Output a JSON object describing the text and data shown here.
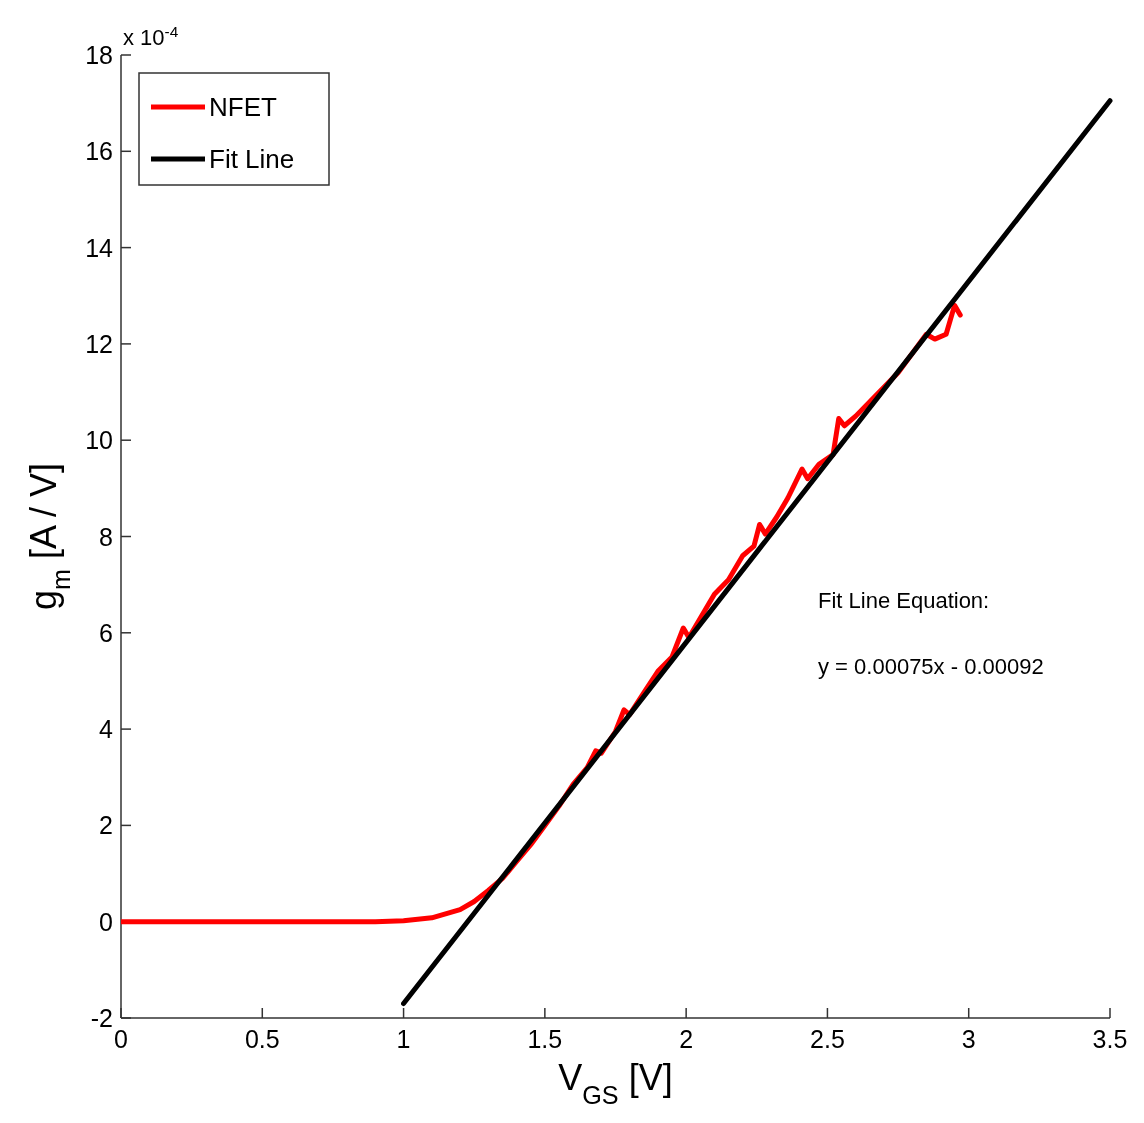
{
  "chart_data": {
    "type": "line",
    "xlabel": "V$_{GS}$ [V]",
    "ylabel": "g$_{m}$ [A / V]",
    "xlim": [
      0,
      3.5
    ],
    "xticks": [
      0,
      0.5,
      1,
      1.5,
      2,
      2.5,
      3,
      3.5
    ],
    "ylim": [
      -2,
      18
    ],
    "yticks": [
      -2,
      0,
      2,
      4,
      6,
      8,
      10,
      12,
      14,
      16,
      18
    ],
    "grid": false,
    "legend": "top left",
    "line_style": "solid",
    "marker": "none",
    "annotations": [
      "x 10$^{-4}$",
      "Fit Line Equation:",
      "y = 0.00075x - 0.00092"
    ],
    "series": [
      {
        "name": "NFET",
        "color": "#ff0000",
        "x": [
          0,
          0.5,
          0.9,
          1.0,
          1.1,
          1.2,
          1.25,
          1.3,
          1.35,
          1.4,
          1.45,
          1.5,
          1.55,
          1.6,
          1.65,
          1.68,
          1.7,
          1.75,
          1.78,
          1.8,
          1.85,
          1.9,
          1.95,
          1.99,
          2.01,
          2.05,
          2.1,
          2.15,
          2.2,
          2.24,
          2.26,
          2.28,
          2.32,
          2.36,
          2.41,
          2.43,
          2.47,
          2.52,
          2.54,
          2.56,
          2.6,
          2.65,
          2.7,
          2.75,
          2.8,
          2.85,
          2.88,
          2.92,
          2.95,
          2.97
        ],
        "values": [
          0,
          0,
          0,
          0.02,
          0.08,
          0.25,
          0.42,
          0.65,
          0.9,
          1.25,
          1.6,
          2.0,
          2.4,
          2.85,
          3.2,
          3.55,
          3.5,
          3.95,
          4.4,
          4.3,
          4.75,
          5.2,
          5.5,
          6.1,
          5.9,
          6.3,
          6.8,
          7.1,
          7.6,
          7.8,
          8.25,
          8.05,
          8.4,
          8.8,
          9.4,
          9.2,
          9.5,
          9.7,
          10.45,
          10.3,
          10.5,
          10.8,
          11.1,
          11.4,
          11.8,
          12.2,
          12.1,
          12.2,
          12.8,
          12.6
        ]
      },
      {
        "name": "Fit Line",
        "color": "#000000",
        "x": [
          1,
          3.5
        ],
        "values": [
          -1.7,
          17.05
        ]
      }
    ]
  }
}
